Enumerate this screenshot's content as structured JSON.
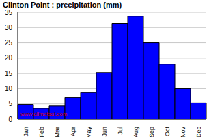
{
  "chart_data": {
    "type": "bar",
    "title": "Clinton Point : precipitation (mm)",
    "categories": [
      "Jan",
      "Feb",
      "Mar",
      "Apr",
      "May",
      "Jun",
      "Jul",
      "Aug",
      "Sep",
      "Oct",
      "Nov",
      "Dec"
    ],
    "values": [
      4.8,
      3.6,
      4.3,
      7.1,
      8.7,
      15.3,
      31.3,
      33.7,
      25.0,
      18.0,
      10.0,
      5.3
    ],
    "color": "#0000ff",
    "ylim": [
      0,
      35
    ],
    "yticks": [
      0,
      5,
      10,
      15,
      20,
      25,
      30,
      35
    ],
    "grid": true,
    "annotations": [
      "www.allmetsat.com"
    ]
  }
}
